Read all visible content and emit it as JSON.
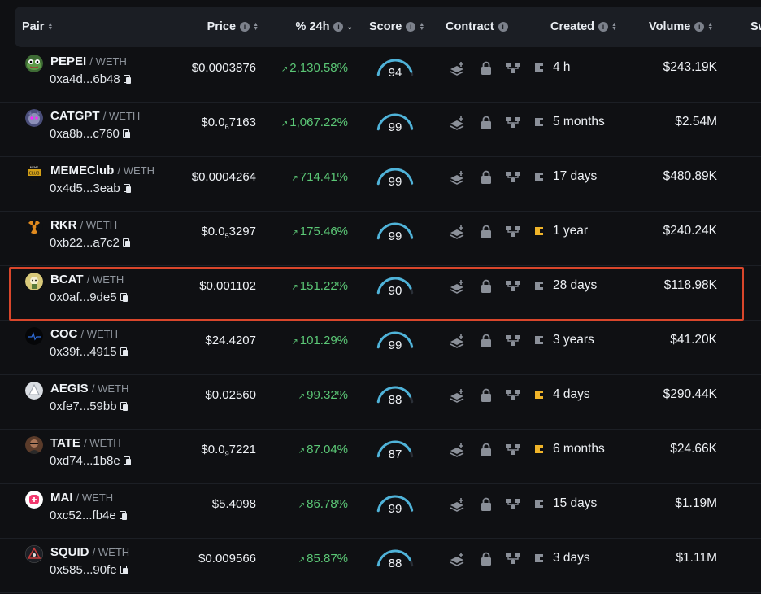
{
  "headers": {
    "pair": "Pair",
    "price": "Price",
    "change": "% 24h",
    "score": "Score",
    "contract": "Contract",
    "created": "Created",
    "volume": "Volume",
    "swaps": "Sw"
  },
  "colors": {
    "positive": "#5bc776",
    "gauge": "#4fb3d9",
    "gauge_track": "#2a2f37",
    "highlight": "#d9462b",
    "coin_icon_active": "#f0b429",
    "contract_icon": "#8b9099"
  },
  "rows": [
    {
      "symbol": "PEPEI",
      "quote": "/ WETH",
      "address": "0xa4d...6b48",
      "price_main": "$0.0003876",
      "price_sub": "",
      "price_tail": "",
      "change": "2,130.58%",
      "score": "94",
      "score_value": 94,
      "coin_active": false,
      "created": "4 h",
      "volume": "$243.19K",
      "avatar": "frog"
    },
    {
      "symbol": "CATGPT",
      "quote": "/ WETH",
      "address": "0xa8b...c760",
      "price_main": "$0.0",
      "price_sub": "6",
      "price_tail": "7163",
      "change": "1,067.22%",
      "score": "99",
      "score_value": 99,
      "coin_active": false,
      "created": "5 months",
      "volume": "$2.54M",
      "avatar": "cat"
    },
    {
      "symbol": "MEMEClub",
      "quote": "/ WETH",
      "address": "0x4d5...3eab",
      "price_main": "$0.0004264",
      "price_sub": "",
      "price_tail": "",
      "change": "714.41%",
      "score": "99",
      "score_value": 99,
      "coin_active": false,
      "created": "17 days",
      "volume": "$480.89K",
      "avatar": "meme"
    },
    {
      "symbol": "RKR",
      "quote": "/ WETH",
      "address": "0xb22...a7c2",
      "price_main": "$0.0",
      "price_sub": "5",
      "price_tail": "3297",
      "change": "175.46%",
      "score": "99",
      "score_value": 99,
      "coin_active": true,
      "created": "1 year",
      "volume": "$240.24K",
      "avatar": "radiation"
    },
    {
      "symbol": "BCAT",
      "quote": "/ WETH",
      "address": "0x0af...9de5",
      "price_main": "$0.001102",
      "price_sub": "",
      "price_tail": "",
      "change": "151.22%",
      "score": "90",
      "score_value": 90,
      "coin_active": false,
      "created": "28 days",
      "volume": "$118.98K",
      "avatar": "bcat"
    },
    {
      "symbol": "COC",
      "quote": "/ WETH",
      "address": "0x39f...4915",
      "price_main": "$24.4207",
      "price_sub": "",
      "price_tail": "",
      "change": "101.29%",
      "score": "99",
      "score_value": 99,
      "coin_active": false,
      "created": "3 years",
      "volume": "$41.20K",
      "avatar": "coc"
    },
    {
      "symbol": "AEGIS",
      "quote": "/ WETH",
      "address": "0xfe7...59bb",
      "price_main": "$0.02560",
      "price_sub": "",
      "price_tail": "",
      "change": "99.32%",
      "score": "88",
      "score_value": 88,
      "coin_active": true,
      "created": "4 days",
      "volume": "$290.44K",
      "avatar": "aegis"
    },
    {
      "symbol": "TATE",
      "quote": "/ WETH",
      "address": "0xd74...1b8e",
      "price_main": "$0.0",
      "price_sub": "9",
      "price_tail": "7221",
      "change": "87.04%",
      "score": "87",
      "score_value": 87,
      "coin_active": true,
      "created": "6 months",
      "volume": "$24.66K",
      "avatar": "tate"
    },
    {
      "symbol": "MAI",
      "quote": "/ WETH",
      "address": "0xc52...fb4e",
      "price_main": "$5.4098",
      "price_sub": "",
      "price_tail": "",
      "change": "86.78%",
      "score": "99",
      "score_value": 99,
      "coin_active": false,
      "created": "15 days",
      "volume": "$1.19M",
      "avatar": "mai"
    },
    {
      "symbol": "SQUID",
      "quote": "/ WETH",
      "address": "0x585...90fe",
      "price_main": "$0.009566",
      "price_sub": "",
      "price_tail": "",
      "change": "85.87%",
      "score": "88",
      "score_value": 88,
      "coin_active": false,
      "created": "3 days",
      "volume": "$1.11M",
      "avatar": "squid"
    }
  ]
}
